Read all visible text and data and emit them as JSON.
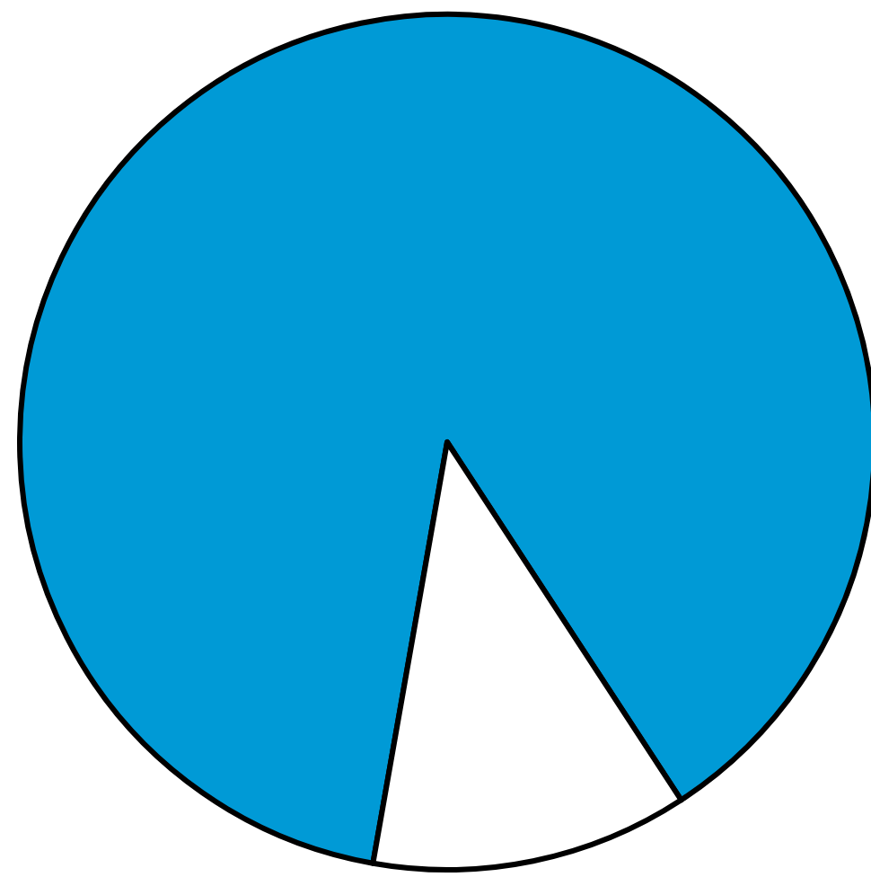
{
  "chart_data": {
    "type": "pie",
    "categories": [
      null,
      null
    ],
    "values": [
      88,
      12
    ],
    "colors": [
      "#009ad6",
      "#ffffff"
    ]
  }
}
